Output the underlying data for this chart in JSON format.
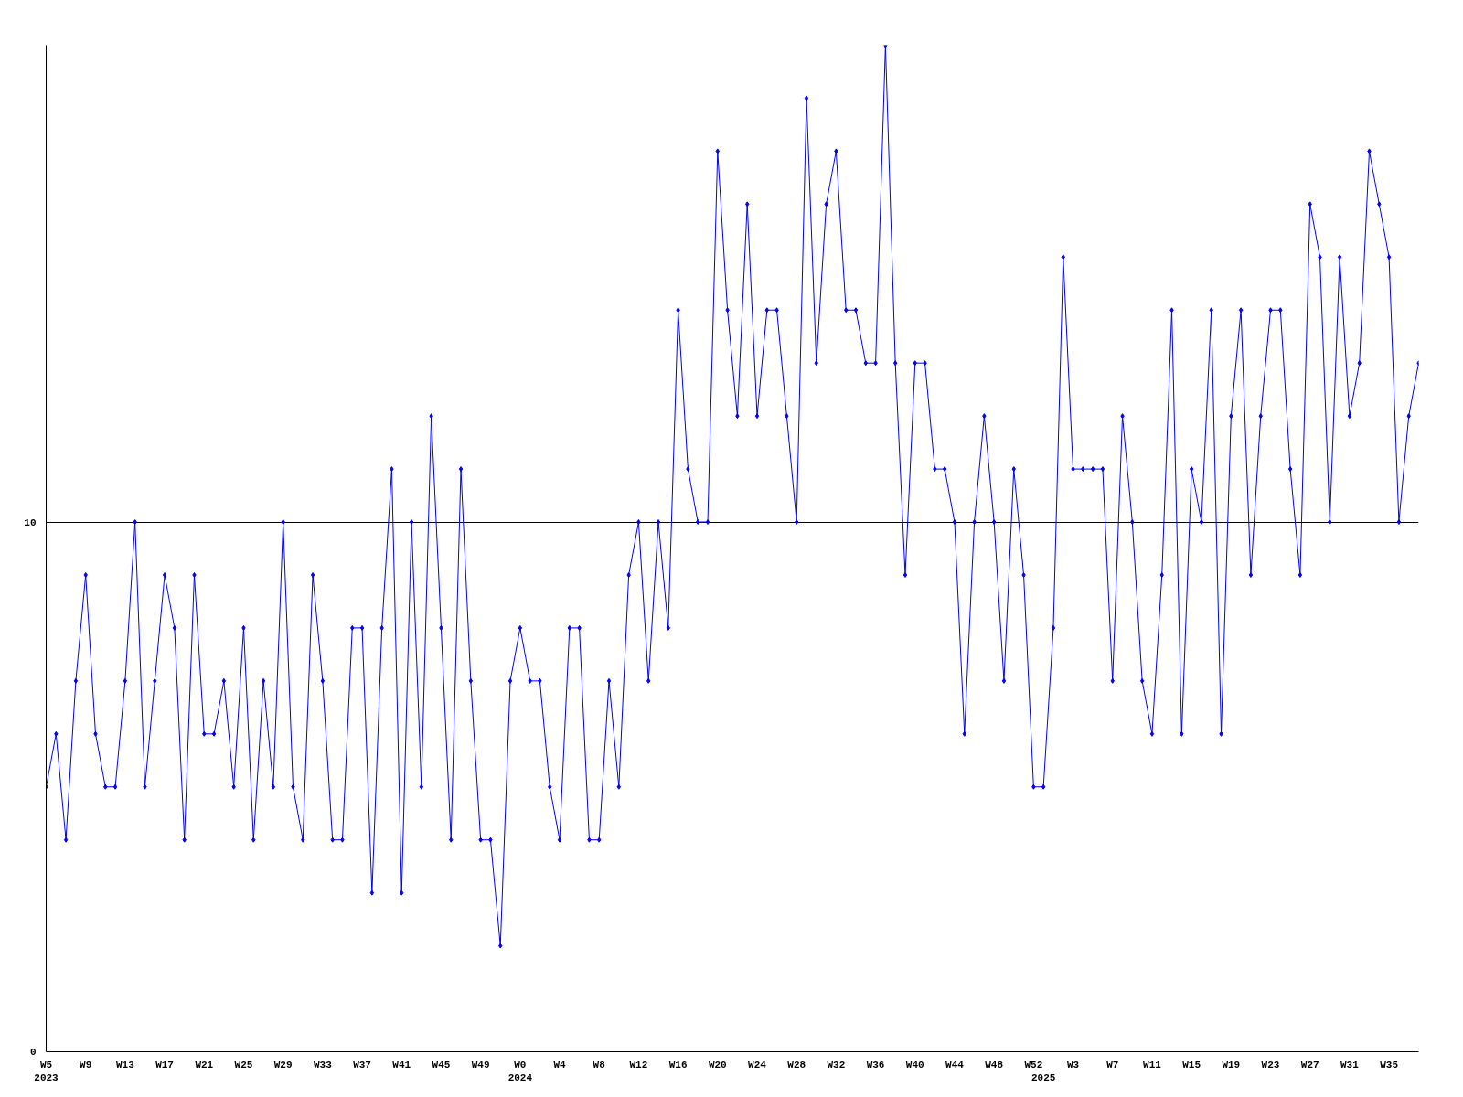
{
  "chart_data": {
    "type": "line",
    "categories": [
      "W5\n2023",
      null,
      null,
      null,
      "W9",
      null,
      null,
      null,
      "W13",
      null,
      null,
      null,
      "W17",
      null,
      null,
      null,
      "W21",
      null,
      null,
      null,
      "W25",
      null,
      null,
      null,
      "W29",
      null,
      null,
      null,
      "W33",
      null,
      null,
      null,
      "W37",
      null,
      null,
      null,
      "W41",
      null,
      null,
      null,
      "W45",
      null,
      null,
      null,
      "W49",
      null,
      null,
      null,
      "W0\n2024",
      null,
      null,
      null,
      "W4",
      null,
      null,
      null,
      "W8",
      null,
      null,
      null,
      "W12",
      null,
      null,
      null,
      "W16",
      null,
      null,
      null,
      "W20",
      null,
      null,
      null,
      "W24",
      null,
      null,
      null,
      "W28",
      null,
      null,
      null,
      "W32",
      null,
      null,
      null,
      "W36",
      null,
      null,
      null,
      "W40",
      null,
      null,
      null,
      "W44",
      null,
      null,
      null,
      "W48",
      null,
      null,
      null,
      "W52",
      "\n2025",
      null,
      null,
      "W3",
      null,
      null,
      null,
      "W7",
      null,
      null,
      null,
      "W11",
      null,
      null,
      null,
      "W15",
      null,
      null,
      null,
      "W19",
      null,
      null,
      null,
      "W23",
      null,
      null,
      null,
      "W27",
      null,
      null,
      null,
      "W31",
      null,
      null,
      null,
      "W35",
      null,
      null,
      null
    ],
    "series": [
      {
        "color": "#0000ff",
        "values": [
          5,
          6,
          4,
          7,
          9,
          6,
          5,
          5,
          7,
          10,
          5,
          7,
          9,
          8,
          4,
          9,
          6,
          6,
          7,
          5,
          8,
          4,
          7,
          5,
          10,
          5,
          4,
          9,
          7,
          4,
          4,
          8,
          8,
          3,
          8,
          11,
          3,
          10,
          5,
          12,
          8,
          4,
          11,
          7,
          4,
          4,
          2,
          7,
          8,
          7,
          7,
          5,
          4,
          8,
          8,
          4,
          4,
          7,
          5,
          9,
          10,
          7,
          10,
          8,
          14,
          11,
          10,
          10,
          17,
          14,
          12,
          16,
          12,
          14,
          14,
          12,
          10,
          18,
          13,
          16,
          17,
          14,
          14,
          13,
          13,
          19,
          13,
          9,
          13,
          13,
          11,
          11,
          10,
          6,
          10,
          12,
          10,
          7,
          11,
          9,
          5,
          5,
          8,
          15,
          11,
          11,
          11,
          11,
          7,
          12,
          10,
          7,
          6,
          9,
          14,
          6,
          11,
          10,
          14,
          6,
          12,
          14,
          9,
          12,
          14,
          14,
          11,
          9,
          16,
          15,
          10,
          15,
          12,
          13,
          17,
          16,
          15,
          10,
          12,
          13
        ]
      }
    ],
    "ylim": [
      0,
      19
    ],
    "yticks": [
      0,
      10
    ],
    "grid": "y",
    "marker": "diamond",
    "line_style": "solid"
  }
}
